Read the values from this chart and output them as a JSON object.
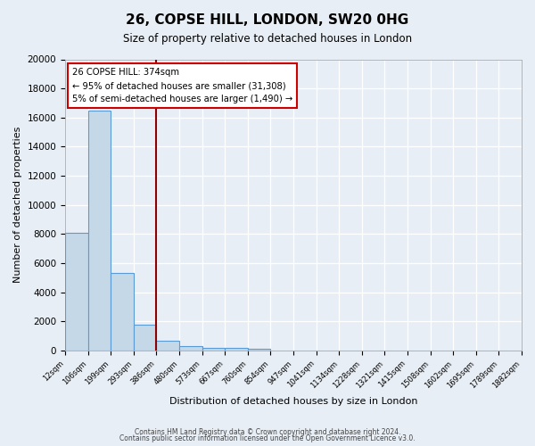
{
  "title": "26, COPSE HILL, LONDON, SW20 0HG",
  "subtitle": "Size of property relative to detached houses in London",
  "xlabel": "Distribution of detached houses by size in London",
  "ylabel": "Number of detached properties",
  "footnote1": "Contains HM Land Registry data © Crown copyright and database right 2024.",
  "footnote2": "Contains public sector information licensed under the Open Government Licence v3.0.",
  "bin_labels": [
    "12sqm",
    "106sqm",
    "199sqm",
    "293sqm",
    "386sqm",
    "480sqm",
    "573sqm",
    "667sqm",
    "760sqm",
    "854sqm",
    "947sqm",
    "1041sqm",
    "1134sqm",
    "1228sqm",
    "1321sqm",
    "1415sqm",
    "1508sqm",
    "1602sqm",
    "1695sqm",
    "1789sqm",
    "1882sqm"
  ],
  "bar_values": [
    8100,
    16500,
    5300,
    1800,
    650,
    300,
    200,
    150,
    100,
    0,
    0,
    0,
    0,
    0,
    0,
    0,
    0,
    0,
    0,
    0,
    0
  ],
  "bar_color": "#c5d8e8",
  "bar_edge_color": "#5b9bd5",
  "vline_x": 4,
  "vline_color": "#8b0000",
  "annotation_title": "26 COPSE HILL: 374sqm",
  "annotation_line1": "← 95% of detached houses are smaller (31,308)",
  "annotation_line2": "5% of semi-detached houses are larger (1,490) →",
  "annotation_box_color": "#ffffff",
  "annotation_border_color": "#cc0000",
  "ylim": [
    0,
    20000
  ],
  "yticks": [
    0,
    2000,
    4000,
    6000,
    8000,
    10000,
    12000,
    14000,
    16000,
    18000,
    20000
  ],
  "bg_color": "#e8eef5",
  "plot_bg_color": "#e8eef5"
}
